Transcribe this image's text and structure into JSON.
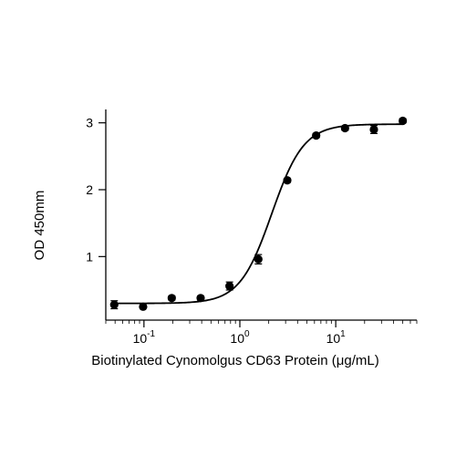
{
  "chart_data": {
    "type": "scatter",
    "title": "",
    "xlabel": "Biotinylated Cynomolgus CD63 Protein (μg/mL)",
    "ylabel": "OD 450mm",
    "xscale": "log",
    "xlim": [
      0.04,
      70
    ],
    "ylim": [
      0.05,
      3.2
    ],
    "x_ticks": [
      {
        "value": 0.1,
        "base": "10",
        "exp": "-1"
      },
      {
        "value": 1,
        "base": "10",
        "exp": "0"
      },
      {
        "value": 10,
        "base": "10",
        "exp": "1"
      }
    ],
    "y_ticks": [
      {
        "value": 1,
        "label": "1"
      },
      {
        "value": 2,
        "label": "2"
      },
      {
        "value": 3,
        "label": "3"
      }
    ],
    "grid": false,
    "series": [
      {
        "x": [
          0.049,
          0.098,
          0.195,
          0.39,
          0.78,
          1.56,
          3.125,
          6.25,
          12.5,
          25,
          50
        ],
        "y": [
          0.28,
          0.25,
          0.38,
          0.38,
          0.56,
          0.96,
          2.14,
          2.81,
          2.92,
          2.9,
          3.03
        ],
        "error": [
          0.06,
          0.02,
          0.03,
          0.03,
          0.06,
          0.07,
          0.03,
          0.03,
          0.03,
          0.06,
          0.03
        ]
      }
    ],
    "fit": {
      "model": "4PL",
      "bottom": 0.3,
      "top": 2.98,
      "ec50": 2.15,
      "hill": 2.6
    }
  }
}
